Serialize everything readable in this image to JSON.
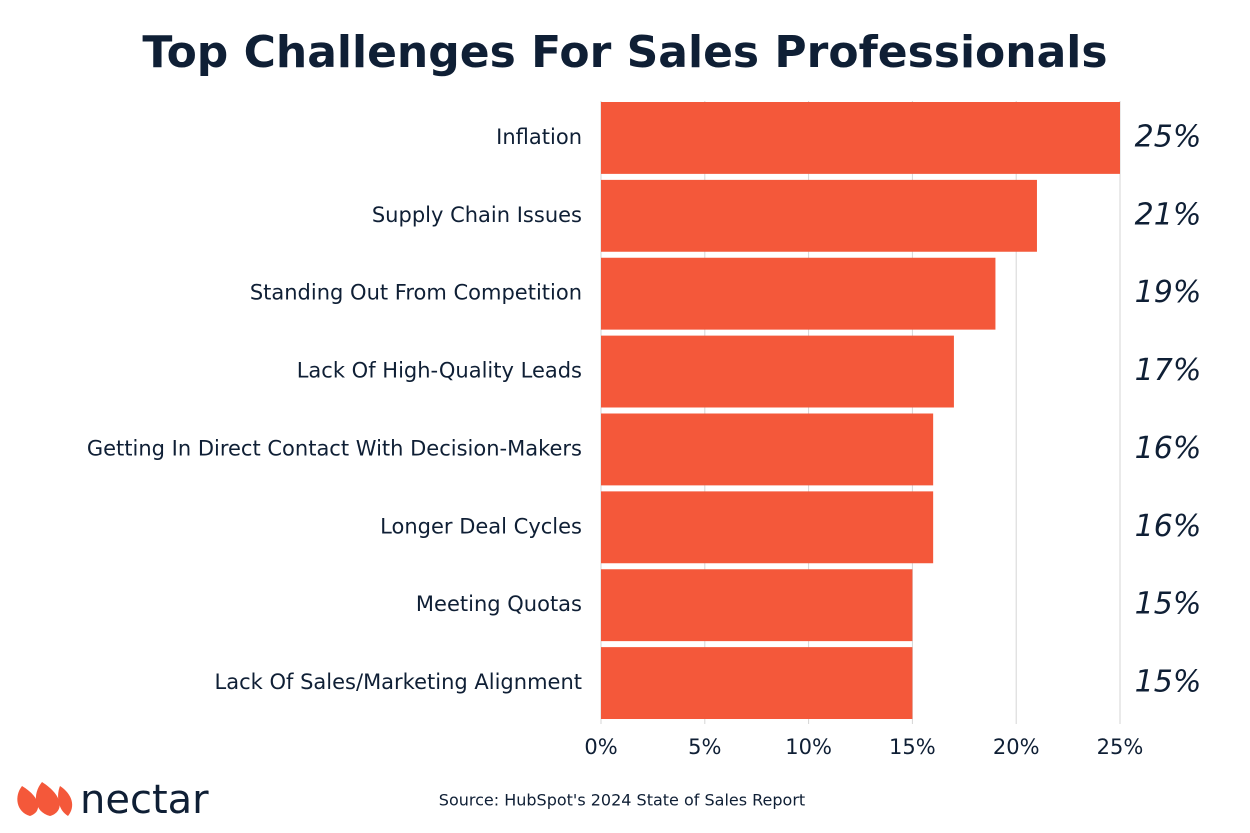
{
  "chart_data": {
    "type": "hbar",
    "title": "Top Challenges For Sales Professionals",
    "categories": [
      "Inflation",
      "Supply Chain Issues",
      "Standing Out From Competition",
      "Lack Of High-Quality Leads",
      "Getting In Direct Contact With Decision-Makers",
      "Longer Deal Cycles",
      "Meeting Quotas",
      "Lack Of Sales/Marketing Alignment"
    ],
    "values": [
      25,
      21,
      19,
      17,
      16,
      16,
      15,
      15
    ],
    "value_labels": [
      "25%",
      "21%",
      "19%",
      "17%",
      "16%",
      "16%",
      "15%",
      "15%"
    ],
    "color": "#f4583a",
    "xlim": [
      0,
      25
    ],
    "xticks": [
      {
        "value": 0,
        "label": "0%"
      },
      {
        "value": 5,
        "label": "5%"
      },
      {
        "value": 10,
        "label": "10%"
      },
      {
        "value": 15,
        "label": "15%"
      },
      {
        "value": 20,
        "label": "20%"
      },
      {
        "value": 25,
        "label": "25%"
      }
    ],
    "grid": true,
    "source": "Source: HubSpot's 2024 State of Sales Report",
    "brand": "nectar"
  }
}
